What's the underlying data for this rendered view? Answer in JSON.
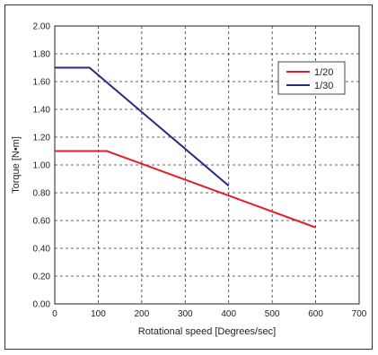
{
  "chart_data": {
    "type": "line",
    "xlabel": "Rotational speed [Degrees/sec]",
    "ylabel": "Torque [N•m]",
    "xlim": [
      0,
      700
    ],
    "ylim": [
      0,
      2.0
    ],
    "x_ticks": [
      "0",
      "100",
      "200",
      "300",
      "400",
      "500",
      "600",
      "700"
    ],
    "y_ticks": [
      "0.00",
      "0.20",
      "0.40",
      "0.60",
      "0.80",
      "1.00",
      "1.20",
      "1.40",
      "1.60",
      "1.80",
      "2.00"
    ],
    "grid": true,
    "legend_position": "top-right",
    "series": [
      {
        "name": "1/20",
        "color": "#e0202a",
        "x": [
          0,
          120,
          600
        ],
        "y": [
          1.1,
          1.1,
          0.55
        ]
      },
      {
        "name": "1/30",
        "color": "#2a2a82",
        "x": [
          0,
          80,
          400
        ],
        "y": [
          1.7,
          1.7,
          0.85
        ]
      }
    ]
  }
}
